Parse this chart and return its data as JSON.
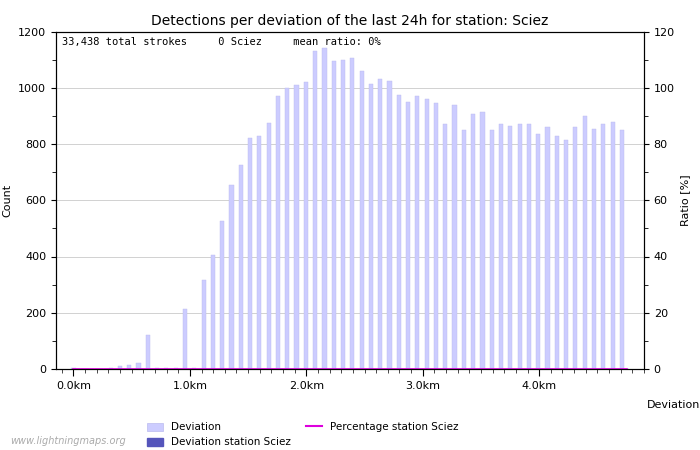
{
  "title": "Detections per deviation of the last 24h for station: Sciez",
  "subtitle": "33,438 total strokes     0 Sciez     mean ratio: 0%",
  "xlabel": "Deviations",
  "ylabel_left": "Count",
  "ylabel_right": "Ratio [%]",
  "watermark": "www.lightningmaps.org",
  "ylim_left": [
    0,
    1200
  ],
  "ylim_right": [
    0,
    120
  ],
  "yticks_left": [
    0,
    200,
    400,
    600,
    800,
    1000,
    1200
  ],
  "yticks_right": [
    0,
    20,
    40,
    60,
    80,
    100,
    120
  ],
  "xtick_labels": [
    "0.0km",
    "1.0km",
    "2.0km",
    "3.0km",
    "4.0km"
  ],
  "bar_color": "#ccccff",
  "bar_color_station": "#5555bb",
  "bar_edge_color": "#bbbbee",
  "line_color": "#dd00dd",
  "fig_width": 7.0,
  "fig_height": 4.5,
  "dpi": 100,
  "heights": [
    2,
    0,
    0,
    0,
    0,
    0,
    0,
    0,
    5,
    0,
    10,
    0,
    15,
    0,
    20,
    0,
    120,
    0,
    5,
    0,
    5,
    0,
    5,
    0,
    215,
    0,
    5,
    0,
    315,
    0,
    405,
    0,
    525,
    0,
    655,
    0,
    725,
    0,
    820,
    0,
    830,
    0,
    875,
    0,
    970,
    0,
    1000,
    0,
    1010,
    0,
    1020,
    0,
    1130,
    0,
    1140,
    0,
    1095,
    0,
    1100,
    0,
    1105,
    0,
    1060,
    0,
    1015,
    0,
    1030,
    0,
    1025,
    0,
    975,
    0,
    950,
    0,
    970,
    0,
    960,
    0,
    945,
    0,
    870,
    0,
    940,
    0,
    850,
    0,
    905,
    0,
    915,
    0,
    850,
    0,
    870,
    0,
    865,
    0,
    870,
    0,
    870,
    0,
    835,
    0,
    860,
    0,
    830,
    0,
    815,
    0,
    860,
    0,
    900,
    0,
    855,
    0,
    870,
    0,
    880,
    0,
    850,
    0
  ]
}
